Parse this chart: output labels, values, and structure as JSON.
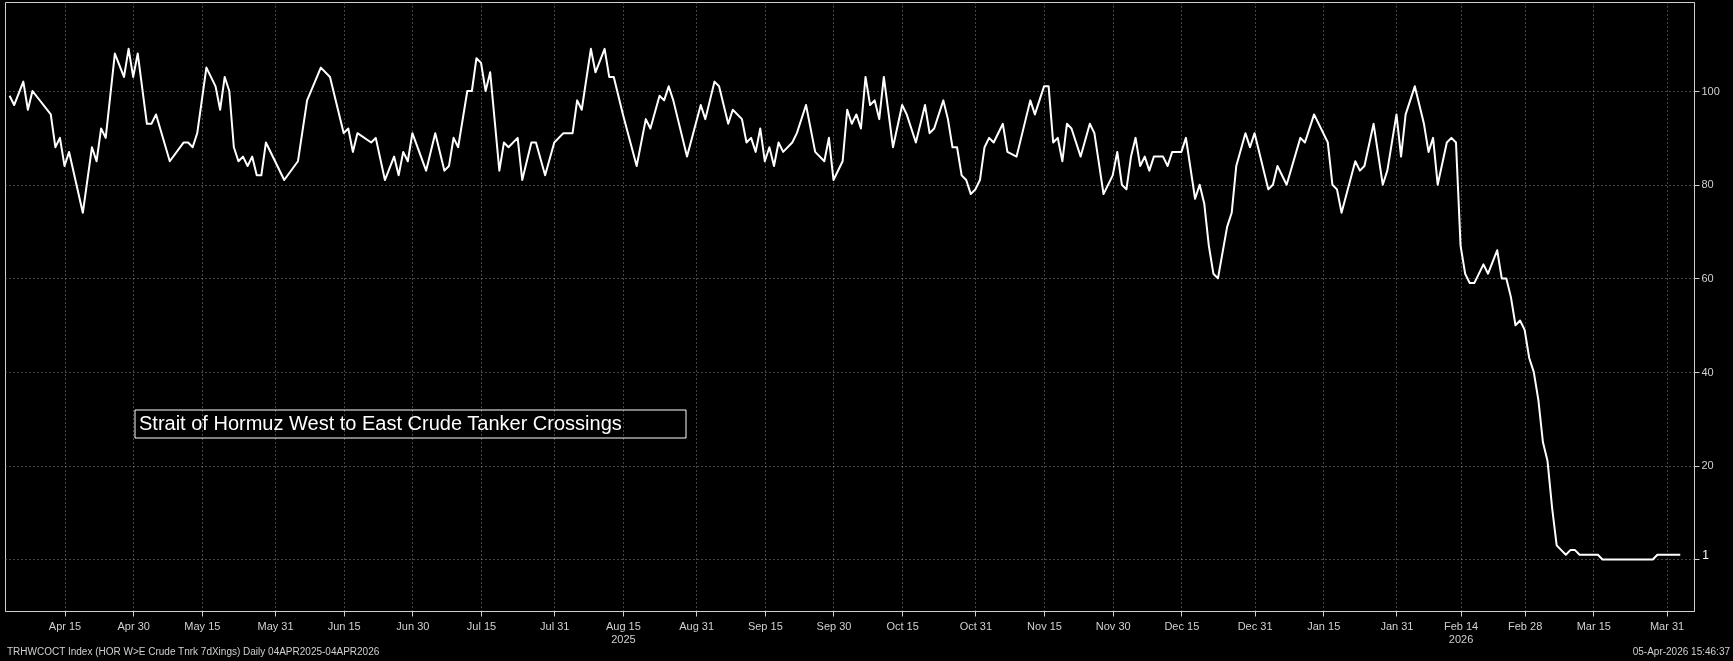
{
  "chart_data": {
    "type": "line",
    "title": "Strait of Hormuz West to East Crude Tanker Crossings",
    "annotations": [
      "TRHWCOCT Index (HOR W>E Crude Tnrk 7dXings) Daily 04APR2025-04APR2026",
      "05-Apr-2026 15:46:37",
      {
        "text": "1",
        "x": "2026-04-03",
        "y": 1
      }
    ],
    "series": [
      {
        "color": "#ffffff",
        "x": [
          "2025-04-03",
          "2025-04-04",
          "2025-04-06",
          "2025-04-07",
          "2025-04-08",
          "2025-04-12",
          "2025-04-13",
          "2025-04-14",
          "2025-04-15",
          "2025-04-16",
          "2025-04-19",
          "2025-04-21",
          "2025-04-22",
          "2025-04-23",
          "2025-04-24",
          "2025-04-26",
          "2025-04-28",
          "2025-04-29",
          "2025-04-30",
          "2025-05-01",
          "2025-05-03",
          "2025-05-04",
          "2025-05-05",
          "2025-05-08",
          "2025-05-11",
          "2025-05-12",
          "2025-05-13",
          "2025-05-14",
          "2025-05-16",
          "2025-05-18",
          "2025-05-19",
          "2025-05-20",
          "2025-05-21",
          "2025-05-22",
          "2025-05-23",
          "2025-05-24",
          "2025-05-25",
          "2025-05-26",
          "2025-05-27",
          "2025-05-28",
          "2025-05-29",
          "2025-05-31",
          "2025-06-02",
          "2025-06-05",
          "2025-06-07",
          "2025-06-10",
          "2025-06-12",
          "2025-06-15",
          "2025-06-16",
          "2025-06-17",
          "2025-06-18",
          "2025-06-21",
          "2025-06-22",
          "2025-06-24",
          "2025-06-26",
          "2025-06-27",
          "2025-06-28",
          "2025-06-29",
          "2025-06-30",
          "2025-07-03",
          "2025-07-05",
          "2025-07-07",
          "2025-07-08",
          "2025-07-09",
          "2025-07-10",
          "2025-07-12",
          "2025-07-13",
          "2025-07-14",
          "2025-07-15",
          "2025-07-16",
          "2025-07-17",
          "2025-07-19",
          "2025-07-20",
          "2025-07-21",
          "2025-07-23",
          "2025-07-24",
          "2025-07-26",
          "2025-07-27",
          "2025-07-29",
          "2025-07-31",
          "2025-08-02",
          "2025-08-04",
          "2025-08-05",
          "2025-08-06",
          "2025-08-08",
          "2025-08-09",
          "2025-08-11",
          "2025-08-12",
          "2025-08-13",
          "2025-08-15",
          "2025-08-18",
          "2025-08-20",
          "2025-08-21",
          "2025-08-23",
          "2025-08-24",
          "2025-08-25",
          "2025-08-26",
          "2025-08-29",
          "2025-09-01",
          "2025-09-02",
          "2025-09-04",
          "2025-09-05",
          "2025-09-07",
          "2025-09-08",
          "2025-09-10",
          "2025-09-11",
          "2025-09-12",
          "2025-09-13",
          "2025-09-14",
          "2025-09-15",
          "2025-09-16",
          "2025-09-17",
          "2025-09-18",
          "2025-09-19",
          "2025-09-21",
          "2025-09-22",
          "2025-09-24",
          "2025-09-26",
          "2025-09-28",
          "2025-09-29",
          "2025-09-30",
          "2025-10-02",
          "2025-10-03",
          "2025-10-04",
          "2025-10-05",
          "2025-10-06",
          "2025-10-07",
          "2025-10-08",
          "2025-10-09",
          "2025-10-10",
          "2025-10-11",
          "2025-10-13",
          "2025-10-15",
          "2025-10-16",
          "2025-10-18",
          "2025-10-20",
          "2025-10-21",
          "2025-10-22",
          "2025-10-24",
          "2025-10-25",
          "2025-10-26",
          "2025-10-27",
          "2025-10-28",
          "2025-10-29",
          "2025-10-30",
          "2025-10-31",
          "2025-11-01",
          "2025-11-02",
          "2025-11-03",
          "2025-11-04",
          "2025-11-06",
          "2025-11-07",
          "2025-11-09",
          "2025-11-12",
          "2025-11-13",
          "2025-11-15",
          "2025-11-16",
          "2025-11-17",
          "2025-11-18",
          "2025-11-19",
          "2025-11-20",
          "2025-11-21",
          "2025-11-23",
          "2025-11-25",
          "2025-11-26",
          "2025-11-28",
          "2025-11-30",
          "2025-12-01",
          "2025-12-02",
          "2025-12-03",
          "2025-12-04",
          "2025-12-05",
          "2025-12-06",
          "2025-12-07",
          "2025-12-08",
          "2025-12-09",
          "2025-12-11",
          "2025-12-12",
          "2025-12-13",
          "2025-12-15",
          "2025-12-16",
          "2025-12-18",
          "2025-12-19",
          "2025-12-20",
          "2025-12-21",
          "2025-12-22",
          "2025-12-23",
          "2025-12-25",
          "2025-12-26",
          "2025-12-27",
          "2025-12-29",
          "2025-12-30",
          "2025-12-31",
          "2026-01-01",
          "2026-01-03",
          "2026-01-04",
          "2026-01-05",
          "2026-01-07",
          "2026-01-10",
          "2026-01-11",
          "2026-01-13",
          "2026-01-16",
          "2026-01-17",
          "2026-01-18",
          "2026-01-19",
          "2026-01-22",
          "2026-01-23",
          "2026-01-24",
          "2026-01-26",
          "2026-01-28",
          "2026-01-29",
          "2026-01-31",
          "2026-02-01",
          "2026-02-02",
          "2026-02-04",
          "2026-02-06",
          "2026-02-07",
          "2026-02-08",
          "2026-02-09",
          "2026-02-11",
          "2026-02-12",
          "2026-02-13",
          "2026-02-14",
          "2026-02-15",
          "2026-02-16",
          "2026-02-17",
          "2026-02-19",
          "2026-02-20",
          "2026-02-22",
          "2026-02-23",
          "2026-02-24",
          "2026-02-25",
          "2026-02-26",
          "2026-02-27",
          "2026-02-28",
          "2026-03-01",
          "2026-03-02",
          "2026-03-03",
          "2026-03-04",
          "2026-03-05",
          "2026-03-06",
          "2026-03-07",
          "2026-03-08",
          "2026-03-09",
          "2026-03-10",
          "2026-03-11",
          "2026-03-12",
          "2026-03-16",
          "2026-03-17",
          "2026-03-28",
          "2026-03-29",
          "2026-04-03"
        ],
        "values": [
          99,
          97,
          102,
          96,
          100,
          95,
          88,
          90,
          84,
          87,
          74,
          88,
          85,
          92,
          90,
          108,
          103,
          109,
          103,
          108,
          93,
          93,
          95,
          85,
          89,
          89,
          88,
          91,
          105,
          101,
          96,
          103,
          100,
          88,
          85,
          86,
          84,
          86,
          82,
          82,
          89,
          85,
          81,
          85,
          98,
          105,
          103,
          91,
          92,
          87,
          91,
          89,
          90,
          81,
          86,
          82,
          87,
          85,
          91,
          83,
          91,
          83,
          84,
          90,
          88,
          100,
          100,
          107,
          106,
          100,
          104,
          83,
          89,
          88,
          90,
          81,
          89,
          89,
          82,
          89,
          91,
          91,
          98,
          96,
          109,
          104,
          109,
          103,
          103,
          95,
          84,
          94,
          92,
          99,
          98,
          101,
          98,
          86,
          97,
          94,
          102,
          101,
          93,
          96,
          94,
          89,
          90,
          87,
          92,
          85,
          88,
          84,
          89,
          87,
          89,
          91,
          97,
          87,
          85,
          90,
          81,
          85,
          96,
          93,
          95,
          92,
          103,
          97,
          98,
          94,
          103,
          88,
          97,
          95,
          89,
          97,
          91,
          92,
          98,
          94,
          88,
          88,
          82,
          81,
          78,
          79,
          81,
          88,
          90,
          89,
          93,
          87,
          86,
          98,
          95,
          101,
          101,
          89,
          90,
          85,
          93,
          92,
          86,
          93,
          91,
          78,
          82,
          87,
          80,
          79,
          86,
          90,
          84,
          86,
          83,
          86,
          86,
          84,
          87,
          87,
          90,
          77,
          80,
          76,
          67,
          61,
          60,
          71,
          74,
          84,
          91,
          88,
          91,
          87,
          79,
          80,
          84,
          80,
          90,
          89,
          95,
          89,
          80,
          79,
          74,
          85,
          83,
          84,
          93,
          80,
          83,
          95,
          86,
          95,
          101,
          93,
          87,
          90,
          80,
          89,
          90,
          89,
          67,
          61,
          59,
          59,
          63,
          61,
          66,
          60,
          60,
          56,
          50,
          51,
          49,
          43,
          40,
          34,
          25,
          21,
          11,
          3,
          2,
          1,
          2,
          2,
          1,
          1,
          0,
          0,
          1,
          1
        ]
      }
    ],
    "xlim": [
      "2025-04-02",
      "2026-04-06"
    ],
    "xticks": [
      {
        "value": "2025-04-15",
        "label": "Apr 15"
      },
      {
        "value": "2025-04-30",
        "label": "Apr 30"
      },
      {
        "value": "2025-05-15",
        "label": "May 15"
      },
      {
        "value": "2025-05-31",
        "label": "May 31"
      },
      {
        "value": "2025-06-15",
        "label": "Jun 15"
      },
      {
        "value": "2025-06-30",
        "label": "Jun 30"
      },
      {
        "value": "2025-07-15",
        "label": "Jul 15"
      },
      {
        "value": "2025-07-31",
        "label": "Jul 31"
      },
      {
        "value": "2025-08-15",
        "label": "Aug 15\n2025"
      },
      {
        "value": "2025-08-31",
        "label": "Aug 31"
      },
      {
        "value": "2025-09-15",
        "label": "Sep 15"
      },
      {
        "value": "2025-09-30",
        "label": "Sep 30"
      },
      {
        "value": "2025-10-15",
        "label": "Oct 15"
      },
      {
        "value": "2025-10-31",
        "label": "Oct 31"
      },
      {
        "value": "2025-11-15",
        "label": "Nov 15"
      },
      {
        "value": "2025-11-30",
        "label": "Nov 30"
      },
      {
        "value": "2025-12-15",
        "label": "Dec 15"
      },
      {
        "value": "2025-12-31",
        "label": "Dec 31"
      },
      {
        "value": "2026-01-15",
        "label": "Jan 15"
      },
      {
        "value": "2026-01-31",
        "label": "Jan 31"
      },
      {
        "value": "2026-02-14",
        "label": "Feb 14\n2026"
      },
      {
        "value": "2026-02-28",
        "label": "Feb 28"
      },
      {
        "value": "2026-03-15",
        "label": "Mar 15"
      },
      {
        "value": "2026-03-31",
        "label": "Mar 31"
      }
    ],
    "ylim": [
      -11,
      119
    ],
    "yticks": [
      {
        "value": 0,
        "label": null
      },
      20,
      40,
      60,
      80,
      100
    ],
    "grid": true,
    "marker": "none",
    "line_style": "solid"
  }
}
